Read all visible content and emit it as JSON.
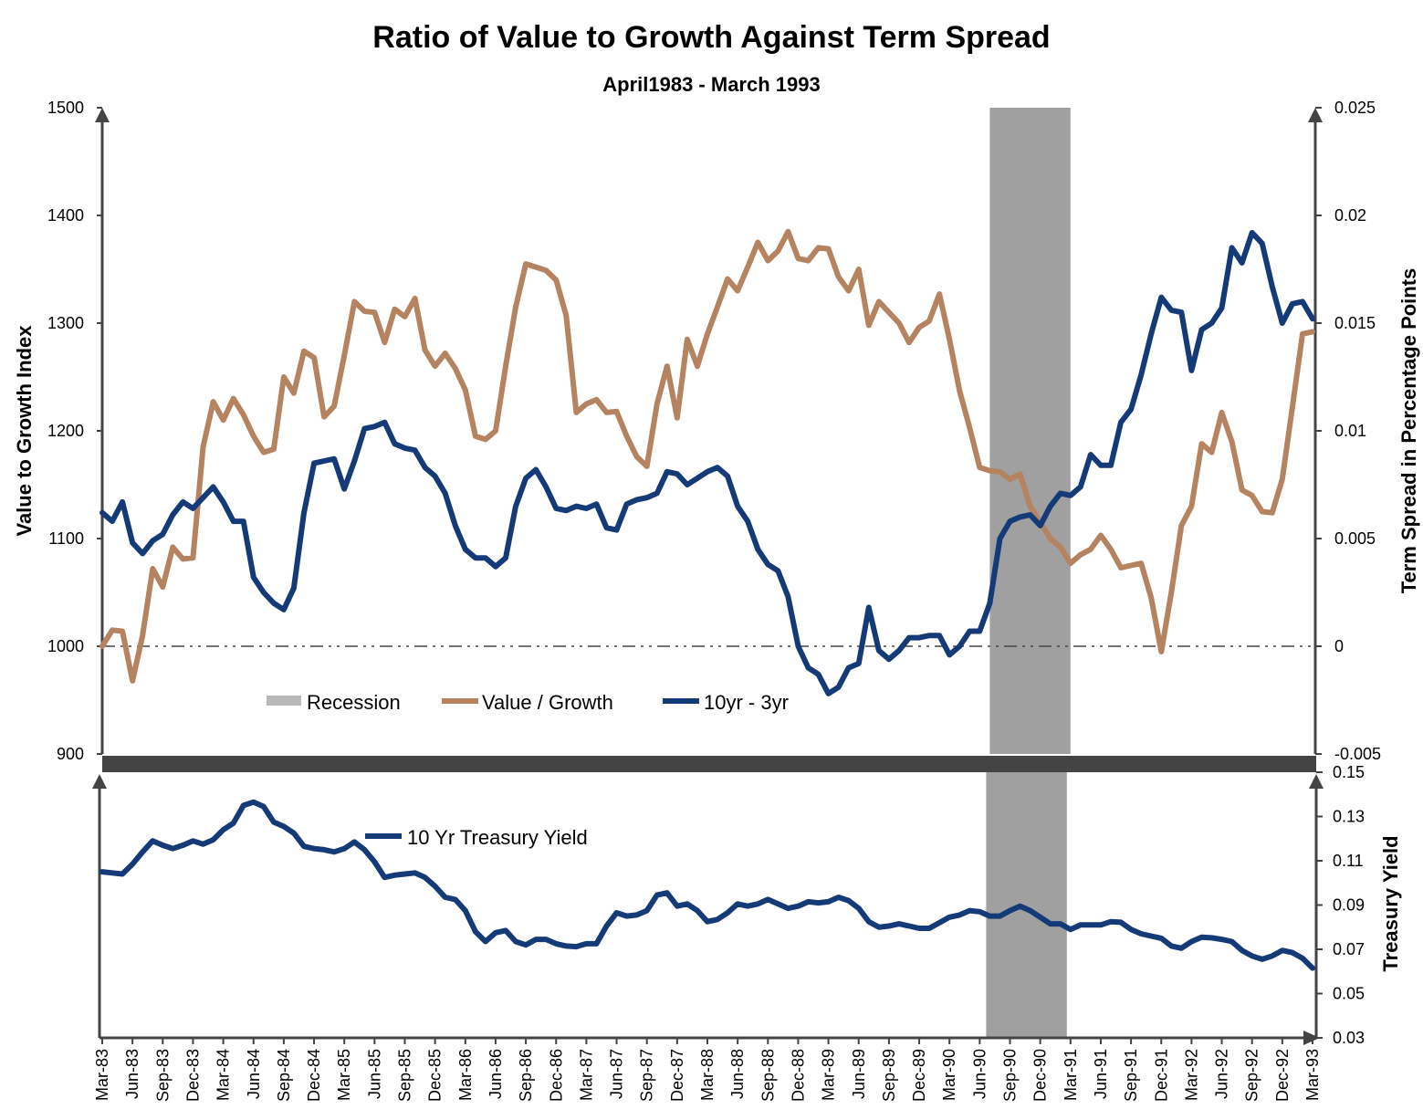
{
  "title": "Ratio of Value to Growth Against Term Spread",
  "subtitle": "April1983 - March 1993",
  "colors": {
    "value_growth": "#b5835f",
    "term_spread": "#153a78",
    "treasury": "#153a78",
    "recession": "#a0a0a0",
    "axis": "#444444"
  },
  "chart_data": [
    {
      "type": "line",
      "title": "Ratio of Value to Growth Against Term Spread",
      "left_axis": {
        "label": "Value to Growth Index",
        "min": 900,
        "max": 1500,
        "ticks": [
          "900",
          "1000",
          "1100",
          "1200",
          "1300",
          "1400",
          "1500"
        ]
      },
      "right_axis": {
        "label": "Term Spread in Percentage Points",
        "min": -0.005,
        "max": 0.025,
        "ticks": [
          "-0.005",
          "0",
          "0.005",
          "0.01",
          "0.015",
          "0.02",
          "0.025"
        ]
      },
      "zero_line": 1000,
      "recession": {
        "label": "Recession",
        "start": "Jul-90",
        "end": "Mar-91"
      },
      "legend": [
        "Recession",
        "Value / Growth",
        "10yr - 3yr"
      ],
      "series": [
        {
          "name": "Value / Growth",
          "axis": "left",
          "values": [
            1000,
            1015,
            1014,
            968,
            1010,
            1072,
            1055,
            1092,
            1081,
            1082,
            1185,
            1227,
            1210,
            1230,
            1215,
            1195,
            1180,
            1183,
            1250,
            1235,
            1274,
            1268,
            1213,
            1223,
            1270,
            1320,
            1311,
            1310,
            1282,
            1313,
            1306,
            1323,
            1275,
            1260,
            1272,
            1258,
            1238,
            1195,
            1192,
            1200,
            1260,
            1315,
            1355,
            1352,
            1349,
            1340,
            1307,
            1217,
            1225,
            1229,
            1217,
            1218,
            1195,
            1176,
            1167,
            1225,
            1260,
            1212,
            1285,
            1260,
            1290,
            1315,
            1341,
            1330,
            1352,
            1375,
            1358,
            1367,
            1385,
            1360,
            1358,
            1370,
            1369,
            1343,
            1330,
            1350,
            1298,
            1320,
            1310,
            1300,
            1282,
            1296,
            1302,
            1327,
            1285,
            1237,
            1203,
            1166,
            1163,
            1162,
            1155,
            1160,
            1130,
            1115,
            1100,
            1092,
            1077,
            1085,
            1090,
            1103,
            1090,
            1073,
            1075,
            1077,
            1045,
            995,
            1050,
            1112,
            1130,
            1188,
            1180,
            1217,
            1190,
            1145,
            1140,
            1125,
            1124,
            1155,
            1222,
            1290,
            1292
          ]
        },
        {
          "name": "10yr - 3yr",
          "axis": "right",
          "values": [
            0.0062,
            0.0058,
            0.0067,
            0.0048,
            0.0043,
            0.0049,
            0.0052,
            0.0061,
            0.0067,
            0.0064,
            0.0069,
            0.0074,
            0.0067,
            0.0058,
            0.0058,
            0.0032,
            0.0025,
            0.002,
            0.0017,
            0.0027,
            0.0062,
            0.0085,
            0.0086,
            0.0087,
            0.0073,
            0.0086,
            0.0101,
            0.0102,
            0.0104,
            0.0094,
            0.0092,
            0.0091,
            0.0083,
            0.0079,
            0.0071,
            0.0056,
            0.0045,
            0.0041,
            0.0041,
            0.0037,
            0.0041,
            0.0065,
            0.0078,
            0.0082,
            0.0074,
            0.0064,
            0.0063,
            0.0065,
            0.0064,
            0.0066,
            0.0055,
            0.0054,
            0.0066,
            0.0068,
            0.0069,
            0.0071,
            0.0081,
            0.008,
            0.0075,
            0.0078,
            0.0081,
            0.0083,
            0.0079,
            0.0065,
            0.0058,
            0.0045,
            0.0038,
            0.0035,
            0.0023,
            0.0,
            -0.001,
            -0.0013,
            -0.0022,
            -0.0019,
            -0.001,
            -0.0008,
            0.0018,
            -0.0002,
            -0.0006,
            -0.0002,
            0.0004,
            0.0004,
            0.0005,
            0.0005,
            -0.0004,
            0.0,
            0.0007,
            0.0007,
            0.002,
            0.005,
            0.0058,
            0.006,
            0.0061,
            0.0056,
            0.0065,
            0.0071,
            0.007,
            0.0074,
            0.0089,
            0.0084,
            0.0084,
            0.0104,
            0.011,
            0.0126,
            0.0145,
            0.0162,
            0.0156,
            0.0155,
            0.0128,
            0.0147,
            0.015,
            0.0157,
            0.0185,
            0.0178,
            0.0192,
            0.0187,
            0.0167,
            0.015,
            0.0159,
            0.016,
            0.0152
          ]
        }
      ]
    },
    {
      "type": "line",
      "right_axis": {
        "label": "Treasury Yield",
        "min": 0.03,
        "max": 0.15,
        "ticks": [
          "0.03",
          "0.05",
          "0.07",
          "0.09",
          "0.11",
          "0.13",
          "0.15"
        ]
      },
      "legend": [
        "10 Yr Treasury Yield"
      ],
      "x_ticks": [
        "Mar-83",
        "Jun-83",
        "Sep-83",
        "Dec-83",
        "Mar-84",
        "Jun-84",
        "Sep-84",
        "Dec-84",
        "Mar-85",
        "Jun-85",
        "Sep-85",
        "Dec-85",
        "Mar-86",
        "Jun-86",
        "Sep-86",
        "Dec-86",
        "Mar-87",
        "Jun-87",
        "Sep-87",
        "Dec-87",
        "Mar-88",
        "Jun-88",
        "Sep-88",
        "Dec-88",
        "Mar-89",
        "Jun-89",
        "Sep-89",
        "Dec-89",
        "Mar-90",
        "Jun-90",
        "Sep-90",
        "Dec-90",
        "Mar-91",
        "Jun-91",
        "Sep-91",
        "Dec-91",
        "Mar-92",
        "Jun-92",
        "Sep-92",
        "Dec-92",
        "Mar-93"
      ],
      "series": [
        {
          "name": "10 Yr Treasury Yield",
          "axis": "right",
          "values": [
            0.105,
            0.1045,
            0.104,
            0.1085,
            0.114,
            0.119,
            0.117,
            0.1155,
            0.117,
            0.119,
            0.1175,
            0.1195,
            0.124,
            0.127,
            0.135,
            0.1365,
            0.1345,
            0.1275,
            0.1255,
            0.1225,
            0.1165,
            0.1155,
            0.115,
            0.114,
            0.1155,
            0.1185,
            0.115,
            0.1095,
            0.1025,
            0.1035,
            0.104,
            0.1045,
            0.1025,
            0.0985,
            0.0935,
            0.0925,
            0.0875,
            0.078,
            0.0735,
            0.0775,
            0.0785,
            0.0735,
            0.072,
            0.0745,
            0.0745,
            0.0725,
            0.0715,
            0.0712,
            0.0725,
            0.0725,
            0.0805,
            0.0865,
            0.085,
            0.0855,
            0.0875,
            0.0945,
            0.0955,
            0.0895,
            0.0905,
            0.0875,
            0.0825,
            0.0835,
            0.0865,
            0.0905,
            0.0895,
            0.0905,
            0.0925,
            0.0905,
            0.0885,
            0.0895,
            0.0915,
            0.091,
            0.0915,
            0.0935,
            0.092,
            0.0885,
            0.0825,
            0.08,
            0.0805,
            0.0815,
            0.0805,
            0.0795,
            0.0795,
            0.082,
            0.0845,
            0.0855,
            0.0875,
            0.087,
            0.085,
            0.085,
            0.0875,
            0.0895,
            0.0875,
            0.0845,
            0.0815,
            0.0815,
            0.079,
            0.081,
            0.081,
            0.081,
            0.0825,
            0.0822,
            0.079,
            0.077,
            0.076,
            0.075,
            0.0715,
            0.0705,
            0.0735,
            0.0755,
            0.0752,
            0.0745,
            0.0735,
            0.0695,
            0.067,
            0.0655,
            0.067,
            0.0695,
            0.0685,
            0.066,
            0.0615
          ]
        }
      ]
    }
  ]
}
